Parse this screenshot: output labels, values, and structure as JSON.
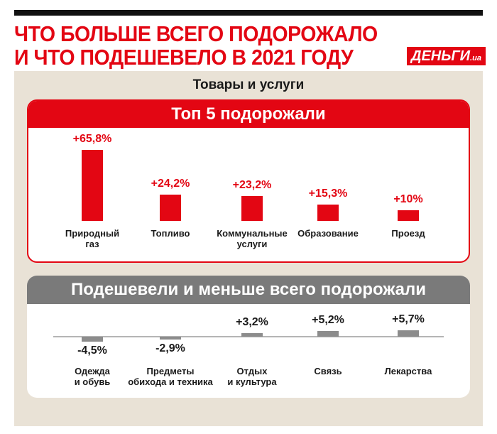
{
  "header": {
    "title_lines": [
      "ЧТО БОЛЬШЕ ВСЕГО ПОДОРОЖАЛО",
      "И ЧТО ПОДЕШЕВЕЛО В 2021 ГОДУ"
    ],
    "logo": "ДЕНЬГИ",
    "logo_suffix": ".ua",
    "subtitle": "Товары и услуги"
  },
  "chart_data": [
    {
      "type": "bar",
      "title": "Топ 5 подорожали",
      "categories": [
        "Природный\nгаз",
        "Топливо",
        "Коммунальные\nуслуги",
        "Образование",
        "Проезд"
      ],
      "values": [
        65.8,
        24.2,
        23.2,
        15.3,
        10
      ],
      "value_labels": [
        "+65,8%",
        "+24,2%",
        "+23,2%",
        "+15,3%",
        "+10%"
      ],
      "color": "#e30613",
      "label_color": "#e30613",
      "baseline": false
    },
    {
      "type": "bar",
      "title": "Подешевели и меньше всего подорожали",
      "categories": [
        "Одежда\nи обувь",
        "Предметы\nобихода и техника",
        "Отдых\nи культура",
        "Связь",
        "Лекарства"
      ],
      "values": [
        -4.5,
        -2.9,
        3.2,
        5.2,
        5.7
      ],
      "value_labels": [
        "-4,5%",
        "-2,9%",
        "+3,2%",
        "+5,2%",
        "+5,7%"
      ],
      "color": "#8c8c8c",
      "label_color": "#1a1a1a",
      "baseline": true
    }
  ]
}
